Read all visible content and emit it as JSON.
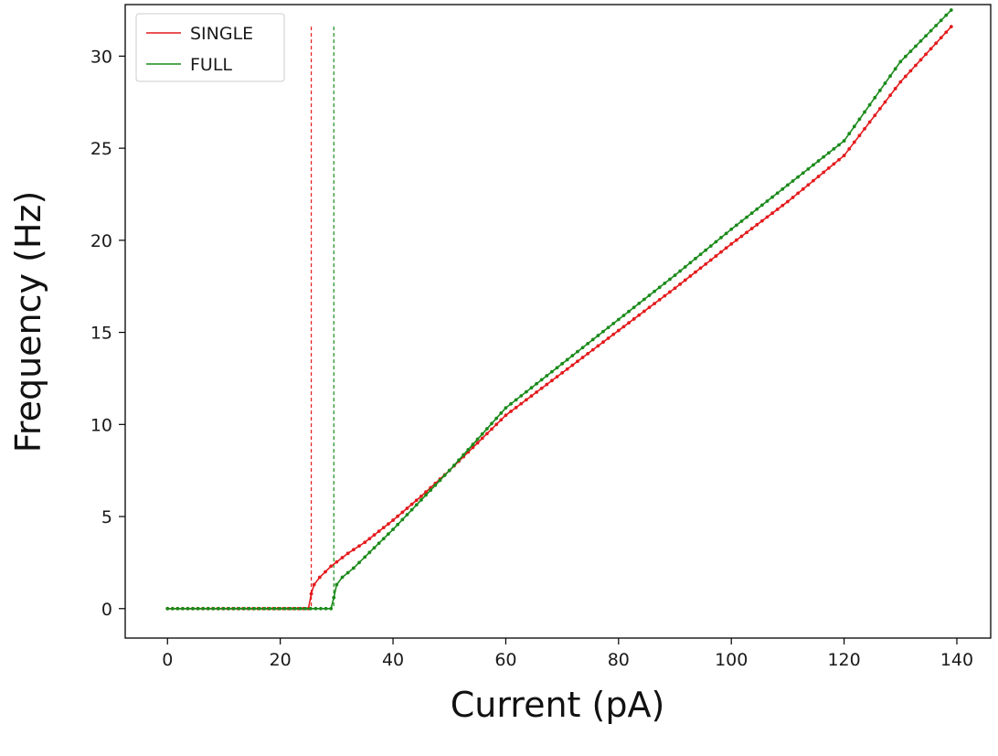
{
  "chart_data": {
    "type": "line",
    "xlabel": "Current (pA)",
    "ylabel": "Frequency (Hz)",
    "xlim": [
      -7.5,
      146
    ],
    "ylim": [
      -1.6,
      32.8
    ],
    "xticks": [
      0,
      20,
      40,
      60,
      80,
      100,
      120,
      140
    ],
    "yticks": [
      0,
      5,
      10,
      15,
      20,
      25,
      30
    ],
    "grid": false,
    "legend_position": "top-left",
    "series": [
      {
        "name": "SINGLE",
        "color": "#e41a1c",
        "threshold": 25.5,
        "x": [
          0,
          25,
          25.5,
          26,
          27,
          29,
          32,
          35,
          40,
          45,
          50,
          55,
          60,
          70,
          80,
          90,
          100,
          110,
          120,
          130,
          139
        ],
        "y": [
          0,
          0,
          0.8,
          1.3,
          1.7,
          2.3,
          3.0,
          3.6,
          4.8,
          6.1,
          7.5,
          9.0,
          10.5,
          12.8,
          15.1,
          17.4,
          19.8,
          22.1,
          24.6,
          28.6,
          31.6
        ]
      },
      {
        "name": "FULL",
        "color": "#1a8a1a",
        "threshold": 29.5,
        "x": [
          0,
          29,
          29.5,
          30,
          31,
          33,
          35,
          40,
          45,
          50,
          55,
          60,
          70,
          80,
          90,
          100,
          110,
          120,
          130,
          139
        ],
        "y": [
          0,
          0,
          0.6,
          1.3,
          1.7,
          2.2,
          2.8,
          4.3,
          5.9,
          7.5,
          9.2,
          10.9,
          13.3,
          15.7,
          18.1,
          20.6,
          23.0,
          25.4,
          29.7,
          32.5
        ]
      }
    ]
  }
}
